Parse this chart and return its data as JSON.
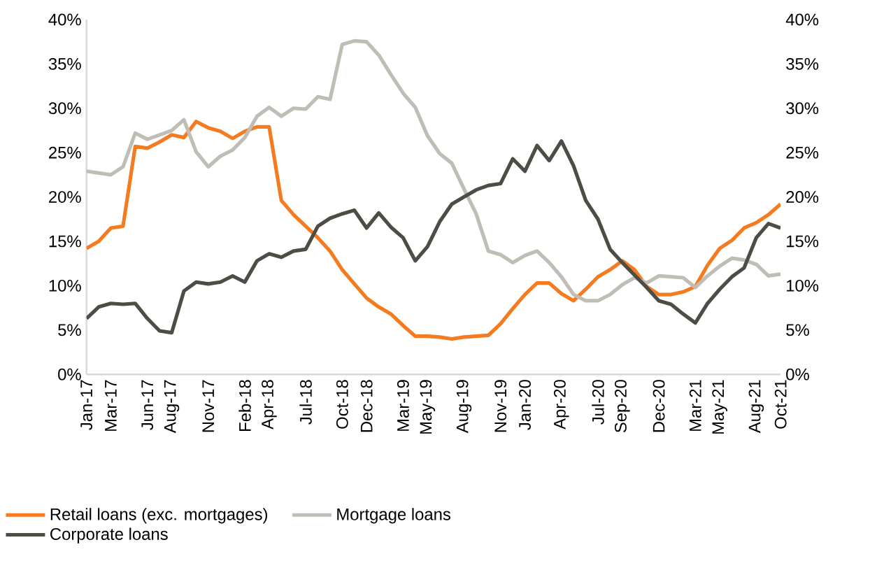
{
  "chart_data": {
    "type": "line",
    "categories": [
      "Jan-17",
      null,
      "Mar-17",
      null,
      null,
      "Jun-17",
      null,
      "Aug-17",
      null,
      null,
      "Nov-17",
      null,
      null,
      "Feb-18",
      null,
      "Apr-18",
      null,
      null,
      "Jul-18",
      null,
      null,
      "Oct-18",
      null,
      "Dec-18",
      null,
      null,
      "Mar-19",
      null,
      "May-19",
      null,
      null,
      "Aug-19",
      null,
      null,
      "Nov-19",
      null,
      "Jan-20",
      null,
      null,
      "Apr-20",
      null,
      null,
      "Jul-20",
      null,
      "Sep-20",
      null,
      null,
      "Dec-20",
      null,
      null,
      "Mar-21",
      null,
      "May-21",
      null,
      null,
      "Aug-21",
      null,
      "Oct-21"
    ],
    "series": [
      {
        "name": "Retail loans (exc. mortgages)",
        "color": "#f47b20",
        "values": [
          14.2,
          15.0,
          16.5,
          16.7,
          25.7,
          25.5,
          26.2,
          27.0,
          26.7,
          28.5,
          27.8,
          27.4,
          26.6,
          27.4,
          27.9,
          27.9,
          19.6,
          18.0,
          16.7,
          15.4,
          13.9,
          11.8,
          10.2,
          8.6,
          7.6,
          6.8,
          5.5,
          4.3,
          4.3,
          4.2,
          4.0,
          4.2,
          4.3,
          4.4,
          5.7,
          7.4,
          9.0,
          10.3,
          10.3,
          9.1,
          8.3,
          9.6,
          11.0,
          11.8,
          12.8,
          11.8,
          9.9,
          9.0,
          9.0,
          9.3,
          9.9,
          12.3,
          14.2,
          15.1,
          16.5,
          17.1,
          18.0,
          19.2
        ]
      },
      {
        "name": "Mortgage loans",
        "color": "#bfbdb5",
        "values": [
          22.9,
          22.7,
          22.5,
          23.4,
          27.2,
          26.5,
          27.0,
          27.5,
          28.7,
          25.1,
          23.4,
          24.6,
          25.3,
          26.7,
          29.1,
          30.1,
          29.1,
          30.0,
          29.9,
          31.3,
          31.0,
          37.2,
          37.6,
          37.5,
          36.0,
          33.8,
          31.7,
          30.1,
          26.9,
          24.9,
          23.8,
          20.9,
          18.1,
          13.9,
          13.5,
          12.6,
          13.4,
          13.9,
          12.6,
          11.0,
          9.0,
          8.3,
          8.3,
          9.0,
          10.1,
          10.9,
          10.3,
          11.1,
          11.0,
          10.9,
          9.8,
          11.1,
          12.2,
          13.1,
          12.9,
          12.4,
          11.1,
          11.3
        ]
      },
      {
        "name": "Corporate loans",
        "color": "#4d4d45",
        "values": [
          6.3,
          7.6,
          8.0,
          7.9,
          8.0,
          6.3,
          4.9,
          4.7,
          9.4,
          10.4,
          10.2,
          10.4,
          11.1,
          10.4,
          12.8,
          13.6,
          13.2,
          13.9,
          14.1,
          16.7,
          17.6,
          18.1,
          18.5,
          16.5,
          18.2,
          16.6,
          15.4,
          12.8,
          14.4,
          17.2,
          19.2,
          20.0,
          20.8,
          21.3,
          21.5,
          24.3,
          22.9,
          25.8,
          24.1,
          26.3,
          23.5,
          19.6,
          17.5,
          14.1,
          12.6,
          11.2,
          9.8,
          8.3,
          7.9,
          6.8,
          5.8,
          8.0,
          9.6,
          11.0,
          12.0,
          15.4,
          17.0,
          16.5
        ]
      }
    ],
    "ylim": [
      0,
      40
    ],
    "yticks": [
      {
        "value": 0,
        "label": "0%"
      },
      {
        "value": 5,
        "label": "5%"
      },
      {
        "value": 10,
        "label": "10%"
      },
      {
        "value": 15,
        "label": "15%"
      },
      {
        "value": 20,
        "label": "20%"
      },
      {
        "value": 25,
        "label": "25%"
      },
      {
        "value": 30,
        "label": "30%"
      },
      {
        "value": 35,
        "label": "35%"
      },
      {
        "value": 40,
        "label": "40%"
      }
    ],
    "y2lim": [
      0,
      40
    ],
    "y2ticks": [
      {
        "value": 0,
        "label": "0%"
      },
      {
        "value": 5,
        "label": "5%"
      },
      {
        "value": 10,
        "label": "10%"
      },
      {
        "value": 15,
        "label": "15%"
      },
      {
        "value": 20,
        "label": "20%"
      },
      {
        "value": 25,
        "label": "25%"
      },
      {
        "value": 30,
        "label": "30%"
      },
      {
        "value": 35,
        "label": "35%"
      },
      {
        "value": 40,
        "label": "40%"
      }
    ],
    "legend": "bottom",
    "grid": false,
    "marker": "none",
    "line_style": "solid"
  }
}
